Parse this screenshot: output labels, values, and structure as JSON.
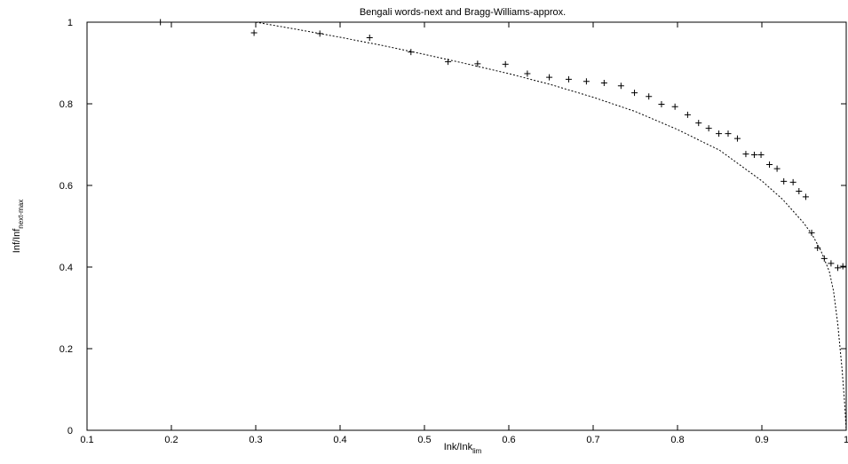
{
  "chart_data": {
    "type": "scatter",
    "title": "Bengali words-next and Bragg-Williams-approx.",
    "xlabel": {
      "main": "Ink/Ink",
      "sub": "lim"
    },
    "ylabel": {
      "main": "Inf/Inf",
      "sub": "next-max"
    },
    "xlim": [
      0.1,
      1.0
    ],
    "ylim": [
      0,
      1
    ],
    "x_ticks": [
      0.1,
      0.2,
      0.3,
      0.4,
      0.5,
      0.6,
      0.7,
      0.8,
      0.9,
      1.0
    ],
    "x_tick_labels": [
      "0.1",
      "0.2",
      "0.3",
      "0.4",
      "0.5",
      "0.6",
      "0.7",
      "0.8",
      "0.9",
      "1"
    ],
    "y_ticks": [
      0,
      0.2,
      0.4,
      0.6,
      0.8,
      1.0
    ],
    "y_tick_labels": [
      "0",
      "0.2",
      "0.4",
      "0.6",
      "0.8",
      "1"
    ],
    "grid": false,
    "legend": "none",
    "series": [
      {
        "style": "points-plus",
        "color": "#000000",
        "points": [
          [
            0.187,
            1.0
          ],
          [
            0.298,
            0.974
          ],
          [
            0.376,
            0.972
          ],
          [
            0.435,
            0.962
          ],
          [
            0.484,
            0.927
          ],
          [
            0.528,
            0.903
          ],
          [
            0.563,
            0.898
          ],
          [
            0.596,
            0.897
          ],
          [
            0.622,
            0.874
          ],
          [
            0.648,
            0.865
          ],
          [
            0.671,
            0.86
          ],
          [
            0.692,
            0.855
          ],
          [
            0.713,
            0.851
          ],
          [
            0.733,
            0.844
          ],
          [
            0.749,
            0.827
          ],
          [
            0.766,
            0.818
          ],
          [
            0.781,
            0.799
          ],
          [
            0.797,
            0.793
          ],
          [
            0.812,
            0.773
          ],
          [
            0.825,
            0.753
          ],
          [
            0.837,
            0.74
          ],
          [
            0.849,
            0.727
          ],
          [
            0.86,
            0.727
          ],
          [
            0.871,
            0.715
          ],
          [
            0.881,
            0.677
          ],
          [
            0.891,
            0.675
          ],
          [
            0.899,
            0.675
          ],
          [
            0.909,
            0.651
          ],
          [
            0.918,
            0.641
          ],
          [
            0.926,
            0.61
          ],
          [
            0.937,
            0.608
          ],
          [
            0.944,
            0.586
          ],
          [
            0.952,
            0.572
          ],
          [
            0.959,
            0.484
          ],
          [
            0.966,
            0.447
          ],
          [
            0.974,
            0.421
          ],
          [
            0.982,
            0.409
          ],
          [
            0.99,
            0.398
          ],
          [
            0.996,
            0.402
          ]
        ]
      },
      {
        "style": "dashed-line",
        "color": "#000000",
        "points": [
          [
            0.3,
            1.0
          ],
          [
            0.35,
            0.982
          ],
          [
            0.4,
            0.963
          ],
          [
            0.45,
            0.943
          ],
          [
            0.5,
            0.921
          ],
          [
            0.55,
            0.898
          ],
          [
            0.6,
            0.874
          ],
          [
            0.65,
            0.847
          ],
          [
            0.7,
            0.816
          ],
          [
            0.75,
            0.781
          ],
          [
            0.8,
            0.737
          ],
          [
            0.85,
            0.686
          ],
          [
            0.9,
            0.611
          ],
          [
            0.925,
            0.565
          ],
          [
            0.95,
            0.507
          ],
          [
            0.96,
            0.478
          ],
          [
            0.97,
            0.44
          ],
          [
            0.98,
            0.389
          ],
          [
            0.985,
            0.34
          ],
          [
            0.99,
            0.26
          ],
          [
            0.995,
            0.15
          ],
          [
            0.998,
            0.07
          ],
          [
            1.0,
            0.0
          ]
        ]
      }
    ]
  }
}
